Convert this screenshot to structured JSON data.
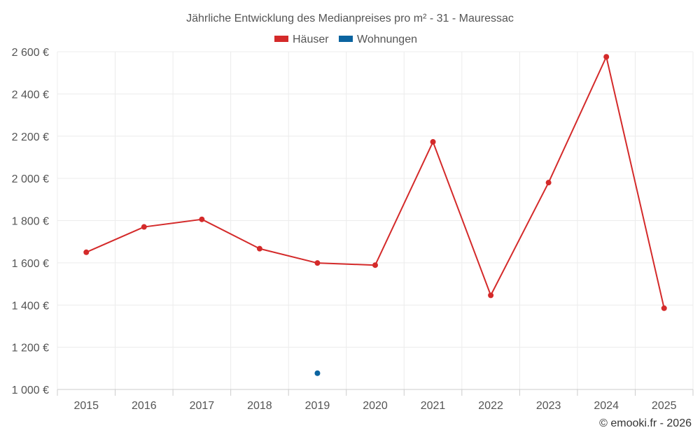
{
  "chart_data": {
    "type": "line",
    "title": "Jährliche Entwicklung des Medianpreises pro m² - 31 - Mauressac",
    "categories": [
      "2015",
      "2016",
      "2017",
      "2018",
      "2019",
      "2020",
      "2021",
      "2022",
      "2023",
      "2024",
      "2025"
    ],
    "series": [
      {
        "name": "Häuser",
        "color": "#d42a2a",
        "values": [
          1650,
          1770,
          1806,
          1667,
          1599,
          1589,
          2173,
          1446,
          1980,
          2576,
          1385
        ]
      },
      {
        "name": "Wohnungen",
        "color": "#0b64a0",
        "values": [
          null,
          null,
          null,
          null,
          1077,
          null,
          null,
          null,
          null,
          null,
          null
        ]
      }
    ],
    "ylim": [
      1000,
      2600
    ],
    "yticks": [
      1000,
      1200,
      1400,
      1600,
      1800,
      2000,
      2200,
      2400,
      2600
    ],
    "ytick_labels": [
      "1 000 €",
      "1 200 €",
      "1 400 €",
      "1 600 €",
      "1 800 €",
      "2 000 €",
      "2 200 €",
      "2 400 €",
      "2 600 €"
    ],
    "xlabel": "",
    "ylabel": "",
    "grid": true,
    "legend_position": "top-center"
  },
  "credit": "© emooki.fr - 2026"
}
